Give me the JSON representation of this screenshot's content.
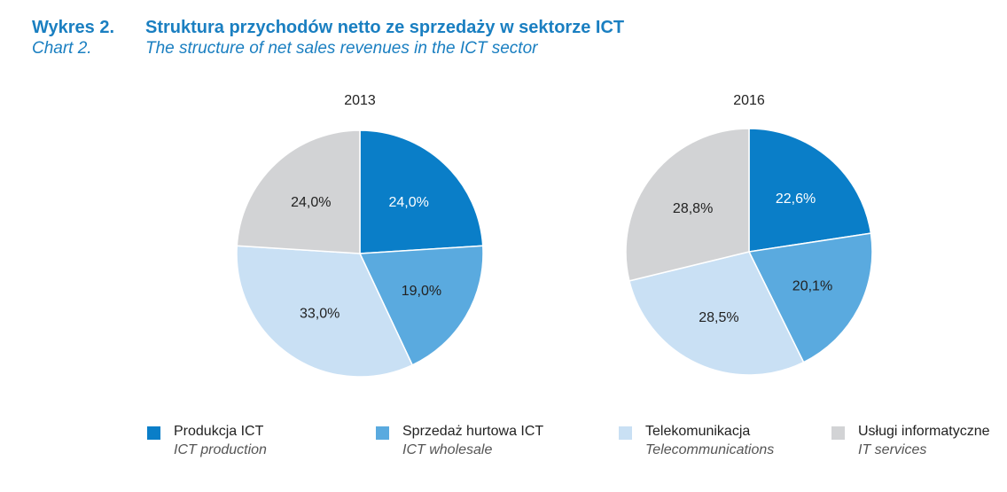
{
  "header": {
    "label_pl": "Wykres 2.",
    "title_pl": "Struktura przychodów netto ze sprzedaży w sektorze ICT",
    "label_en": "Chart  2.",
    "title_en": "The structure of net sales revenues in the ICT sector"
  },
  "chart_data": [
    {
      "type": "pie",
      "title": "2013",
      "categories": [
        "Produkcja ICT",
        "Sprzedaż hurtowa ICT",
        "Telekomunikacja",
        "Usługi informatyczne"
      ],
      "values": [
        24.0,
        19.0,
        33.0,
        24.0
      ],
      "data_labels": [
        "24,0%",
        "19,0%",
        "33,0%",
        "24,0%"
      ],
      "start": "12 o'clock",
      "direction": "clockwise"
    },
    {
      "type": "pie",
      "title": "2016",
      "categories": [
        "Produkcja ICT",
        "Sprzedaż hurtowa ICT",
        "Telekomunikacja",
        "Usługi informatyczne"
      ],
      "values": [
        22.6,
        20.1,
        28.5,
        28.8
      ],
      "data_labels": [
        "22,6%",
        "20,1%",
        "28,5%",
        "28,8%"
      ],
      "start": "12 o'clock",
      "direction": "clockwise"
    }
  ],
  "legend": {
    "placement": "bottom",
    "items": [
      {
        "pl": "Produkcja ICT",
        "en": "ICT production",
        "color": "#0a7ec8"
      },
      {
        "pl": "Sprzedaż hurtowa ICT",
        "en": "ICT wholesale",
        "color": "#5aaadf"
      },
      {
        "pl": "Telekomunikacja",
        "en": "Telecommunications",
        "color": "#c9e0f4"
      },
      {
        "pl": "Usługi  informatyczne",
        "en": "IT services",
        "color": "#d2d3d5"
      }
    ]
  }
}
